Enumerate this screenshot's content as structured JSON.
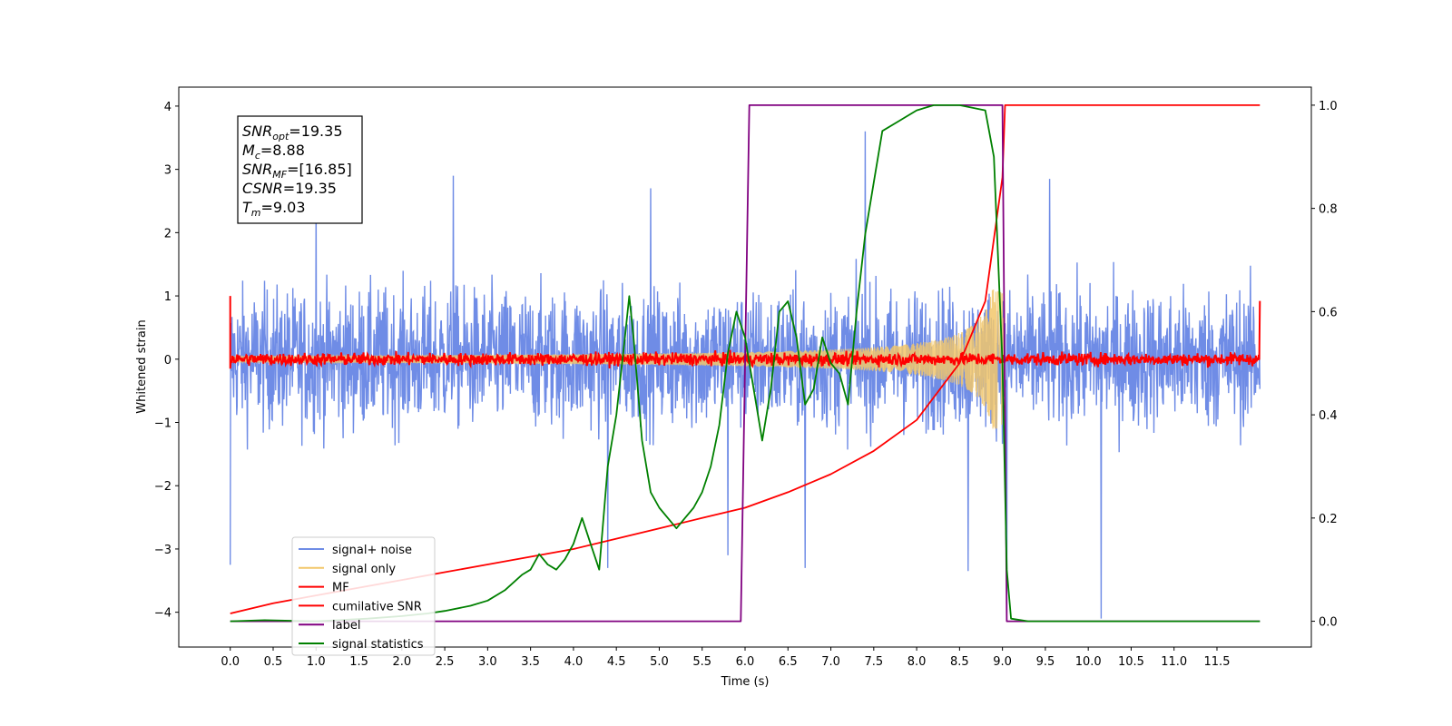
{
  "chart_data": {
    "type": "line",
    "xlabel": "Time (s)",
    "ylabel": "Whitened strain",
    "xlim": [
      -0.6,
      12.6
    ],
    "ylim": [
      -4.55,
      4.3
    ],
    "ylim_right": [
      -0.05,
      1.035
    ],
    "xticks": [
      "0.0",
      "0.5",
      "1.0",
      "1.5",
      "2.0",
      "2.5",
      "3.0",
      "3.5",
      "4.0",
      "4.5",
      "5.0",
      "5.5",
      "6.0",
      "6.5",
      "7.0",
      "7.5",
      "8.0",
      "8.5",
      "9.0",
      "9.5",
      "10.0",
      "10.5",
      "11.0",
      "11.5"
    ],
    "yticks": [
      "4",
      "3",
      "2",
      "1",
      "0",
      "−1",
      "−2",
      "−3",
      "−4"
    ],
    "yticks_right": [
      "1.0",
      "0.8",
      "0.6",
      "0.4",
      "0.2",
      "0.0"
    ],
    "grid": false,
    "legend_position": "lower-left",
    "info_box": {
      "snr_opt": {
        "base": "SNR",
        "sub": "opt",
        "value": "=19.35"
      },
      "mc": {
        "base": "M",
        "sub": "c",
        "value": "=8.88"
      },
      "snr_mf": {
        "base": "SNR",
        "sub": "MF",
        "value": "=[16.85]"
      },
      "csnr": {
        "base": "CSNR",
        "value": "=19.35"
      },
      "tm": {
        "base": "T",
        "sub": "m",
        "value": "=9.03"
      }
    },
    "series": [
      {
        "name": "signal+ noise",
        "color": "#6f8ce6",
        "axis": "left",
        "kind": "noise",
        "x_range": [
          0,
          12
        ],
        "envelope": 2.0,
        "peaks": [
          [
            0.0,
            -3.25
          ],
          [
            1.0,
            2.55
          ],
          [
            2.6,
            2.9
          ],
          [
            4.4,
            -3.3
          ],
          [
            4.9,
            2.7
          ],
          [
            5.8,
            -3.1
          ],
          [
            6.7,
            -3.3
          ],
          [
            7.4,
            3.6
          ],
          [
            8.6,
            -3.35
          ],
          [
            9.05,
            -4.0
          ],
          [
            9.55,
            2.85
          ],
          [
            10.15,
            -4.1
          ]
        ]
      },
      {
        "name": "signal only",
        "color": "#f2c76b",
        "axis": "left",
        "kind": "chirp",
        "x_range": [
          0,
          9.03
        ],
        "amplitude_start": 0.05,
        "amplitude_peak": 1.1
      },
      {
        "name": "MF",
        "color": "#ff0000",
        "axis": "left",
        "kind": "mf",
        "x_range": [
          0,
          12
        ],
        "level": 0.0,
        "jitter": 0.07,
        "edges": [
          [
            0.0,
            1.0
          ],
          [
            0.0,
            -0.15
          ],
          [
            12.0,
            0.92
          ]
        ]
      },
      {
        "name": "cumilative SNR",
        "color": "#ff0000",
        "axis": "right",
        "x": [
          0.0,
          0.5,
          1.0,
          1.5,
          2.0,
          2.5,
          3.0,
          3.5,
          4.0,
          4.5,
          5.0,
          5.5,
          6.0,
          6.5,
          7.0,
          7.5,
          8.0,
          8.5,
          8.8,
          9.0,
          9.03,
          9.05,
          12.0
        ],
        "y": [
          0.015,
          0.035,
          0.05,
          0.065,
          0.08,
          0.095,
          0.11,
          0.125,
          0.14,
          0.16,
          0.18,
          0.2,
          0.22,
          0.25,
          0.285,
          0.33,
          0.39,
          0.5,
          0.62,
          0.86,
          1.0,
          1.0,
          1.0
        ]
      },
      {
        "name": "label",
        "color": "#800080",
        "axis": "right",
        "x": [
          0.0,
          5.95,
          6.05,
          9.0,
          9.05,
          12.0
        ],
        "y": [
          0.0,
          0.0,
          1.0,
          1.0,
          0.0,
          0.0
        ]
      },
      {
        "name": "signal statistics",
        "color": "#008000",
        "axis": "right",
        "x": [
          0.0,
          0.4,
          1.0,
          1.6,
          2.0,
          2.3,
          2.5,
          2.8,
          3.0,
          3.2,
          3.4,
          3.5,
          3.6,
          3.7,
          3.8,
          3.9,
          4.0,
          4.1,
          4.2,
          4.3,
          4.4,
          4.5,
          4.6,
          4.65,
          4.7,
          4.8,
          4.9,
          5.0,
          5.1,
          5.2,
          5.3,
          5.4,
          5.5,
          5.6,
          5.7,
          5.8,
          5.9,
          6.0,
          6.1,
          6.2,
          6.3,
          6.4,
          6.5,
          6.6,
          6.7,
          6.8,
          6.9,
          7.0,
          7.1,
          7.2,
          7.3,
          7.4,
          7.5,
          7.6,
          7.8,
          8.0,
          8.2,
          8.5,
          8.8,
          8.9,
          9.0,
          9.05,
          9.1,
          9.3,
          12.0
        ],
        "y": [
          0.0,
          0.002,
          0.0,
          0.005,
          0.01,
          0.015,
          0.02,
          0.03,
          0.04,
          0.06,
          0.09,
          0.1,
          0.13,
          0.11,
          0.1,
          0.12,
          0.15,
          0.2,
          0.15,
          0.1,
          0.3,
          0.4,
          0.55,
          0.63,
          0.55,
          0.35,
          0.25,
          0.22,
          0.2,
          0.18,
          0.2,
          0.22,
          0.25,
          0.3,
          0.38,
          0.52,
          0.6,
          0.55,
          0.45,
          0.35,
          0.45,
          0.6,
          0.62,
          0.55,
          0.42,
          0.45,
          0.55,
          0.5,
          0.48,
          0.42,
          0.6,
          0.75,
          0.85,
          0.95,
          0.97,
          0.99,
          1.0,
          1.0,
          0.99,
          0.9,
          0.5,
          0.1,
          0.005,
          0.0,
          0.0
        ]
      }
    ]
  }
}
